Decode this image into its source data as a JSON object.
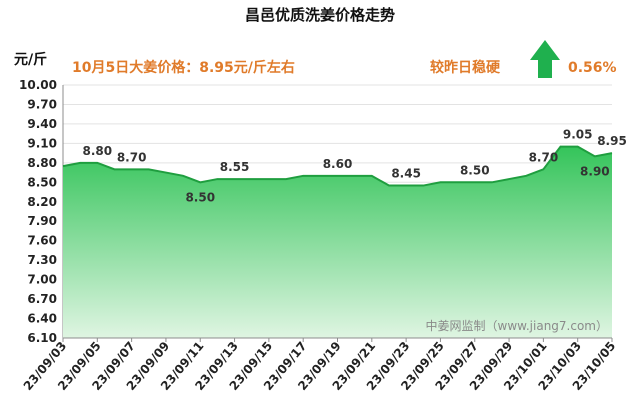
{
  "chart_data": {
    "type": "area",
    "title": "昌邑优质洗姜价格走势",
    "unit_label": "元/斤",
    "headline": "10月5日大姜价格：8.95元/斤左右",
    "trend_text": "较昨日稳硬",
    "change_text": "0.56%",
    "watermark": "中姜网监制（www.jiang7.com）",
    "colors": {
      "area_top": "#34c45a",
      "area_bottom": "#dff5e2",
      "line": "#1f9e3f",
      "arrow": "#1fb04e",
      "headline": "#e07b2a"
    },
    "ylim": [
      6.1,
      10.0
    ],
    "yticks": [
      "6.10",
      "6.40",
      "6.70",
      "7.00",
      "7.30",
      "7.60",
      "7.90",
      "8.20",
      "8.50",
      "8.80",
      "9.10",
      "9.40",
      "9.70",
      "10.00"
    ],
    "x": [
      "23/09/03",
      "23/09/04",
      "23/09/05",
      "23/09/06",
      "23/09/07",
      "23/09/08",
      "23/09/09",
      "23/09/10",
      "23/09/11",
      "23/09/12",
      "23/09/13",
      "23/09/14",
      "23/09/15",
      "23/09/16",
      "23/09/17",
      "23/09/18",
      "23/09/19",
      "23/09/20",
      "23/09/21",
      "23/09/22",
      "23/09/23",
      "23/09/24",
      "23/09/25",
      "23/09/26",
      "23/09/27",
      "23/09/28",
      "23/09/29",
      "23/09/30",
      "23/10/01",
      "23/10/02",
      "23/10/03",
      "23/10/04",
      "23/10/05"
    ],
    "xticks": [
      "23/09/03",
      "23/09/05",
      "23/09/07",
      "23/09/09",
      "23/09/11",
      "23/09/13",
      "23/09/15",
      "23/09/17",
      "23/09/19",
      "23/09/21",
      "23/09/23",
      "23/09/25",
      "23/09/27",
      "23/09/29",
      "23/10/01",
      "23/10/03",
      "23/10/05"
    ],
    "values": [
      8.75,
      8.8,
      8.8,
      8.7,
      8.7,
      8.7,
      8.65,
      8.6,
      8.5,
      8.55,
      8.55,
      8.55,
      8.55,
      8.55,
      8.6,
      8.6,
      8.6,
      8.6,
      8.6,
      8.45,
      8.45,
      8.45,
      8.5,
      8.5,
      8.5,
      8.5,
      8.55,
      8.6,
      8.7,
      9.05,
      9.05,
      8.9,
      8.95
    ],
    "data_labels": [
      {
        "x": "23/09/05",
        "text": "8.80",
        "pos": "above"
      },
      {
        "x": "23/09/07",
        "text": "8.70",
        "pos": "above"
      },
      {
        "x": "23/09/11",
        "text": "8.50",
        "pos": "below"
      },
      {
        "x": "23/09/13",
        "text": "8.55",
        "pos": "above"
      },
      {
        "x": "23/09/19",
        "text": "8.60",
        "pos": "above"
      },
      {
        "x": "23/09/23",
        "text": "8.45",
        "pos": "above"
      },
      {
        "x": "23/09/27",
        "text": "8.50",
        "pos": "above"
      },
      {
        "x": "23/10/01",
        "text": "8.70",
        "pos": "above"
      },
      {
        "x": "23/10/03",
        "text": "9.05",
        "pos": "above"
      },
      {
        "x": "23/10/04",
        "text": "8.90",
        "pos": "below"
      },
      {
        "x": "23/10/05",
        "text": "8.95",
        "pos": "above"
      }
    ]
  }
}
